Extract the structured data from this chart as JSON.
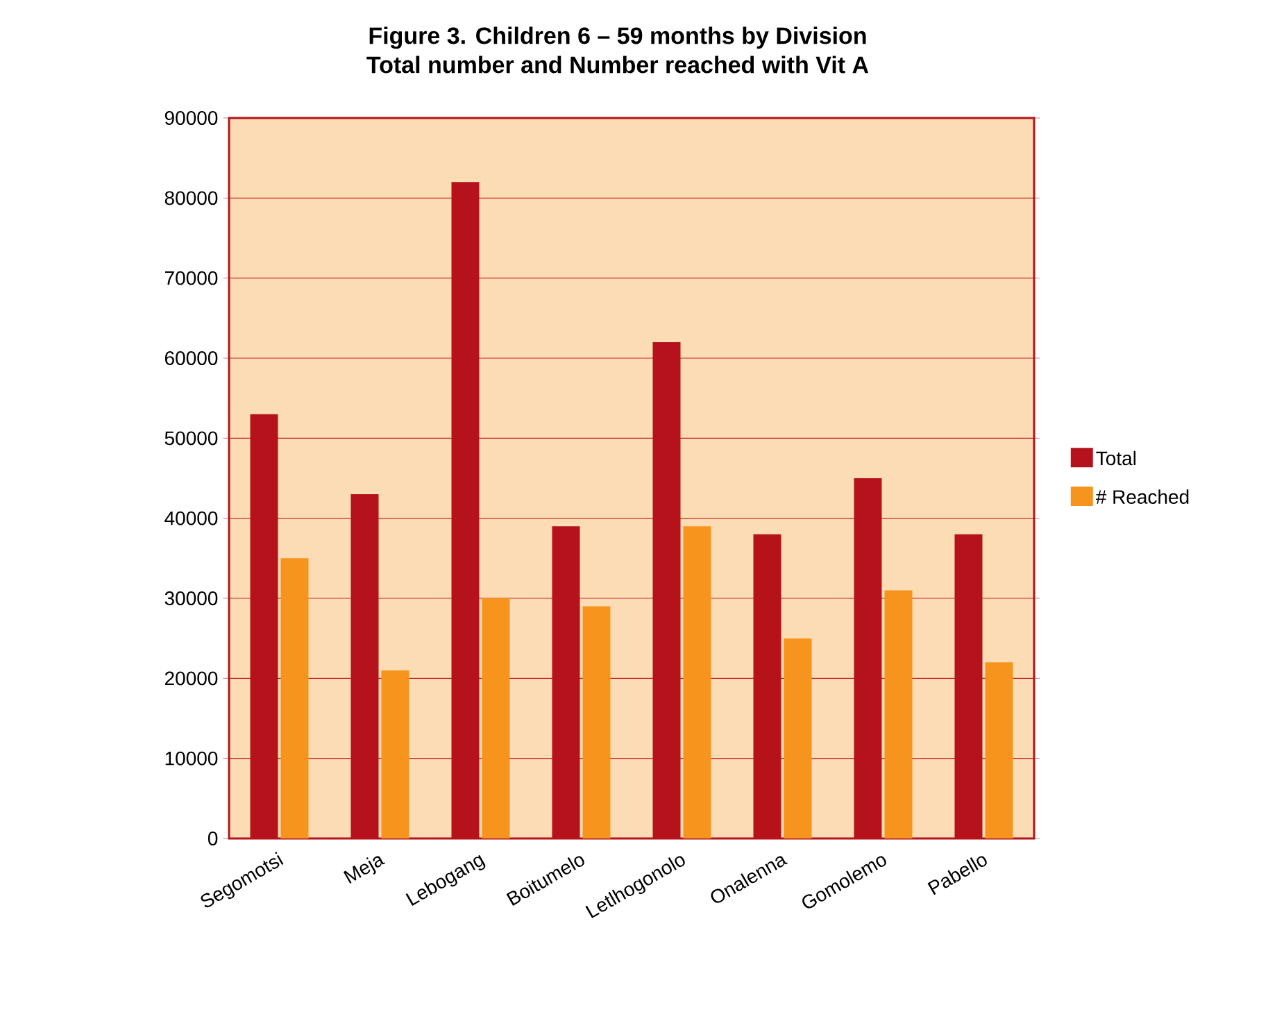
{
  "chart_data": {
    "type": "bar",
    "title": "Figure 3. Children 6 – 59 months by Division\nTotal number and Number reached with Vit A",
    "categories": [
      "Segomotsi",
      "Meja",
      "Lebogang",
      "Boitumelo",
      "Letlhogonolo",
      "Onalenna",
      "Gomolemo",
      "Pabello"
    ],
    "series": [
      {
        "name": "Total",
        "color": "#b5121b",
        "values": [
          53000,
          43000,
          82000,
          39000,
          62000,
          38000,
          45000,
          38000
        ]
      },
      {
        "name": "# Reached",
        "color": "#f7941d",
        "values": [
          35000,
          21000,
          30000,
          29000,
          39000,
          25000,
          31000,
          22000
        ]
      }
    ],
    "ylim": [
      0,
      90000
    ],
    "yticks": [
      0,
      10000,
      20000,
      30000,
      40000,
      50000,
      60000,
      70000,
      80000,
      90000
    ],
    "grid": "y",
    "legend": "right"
  }
}
